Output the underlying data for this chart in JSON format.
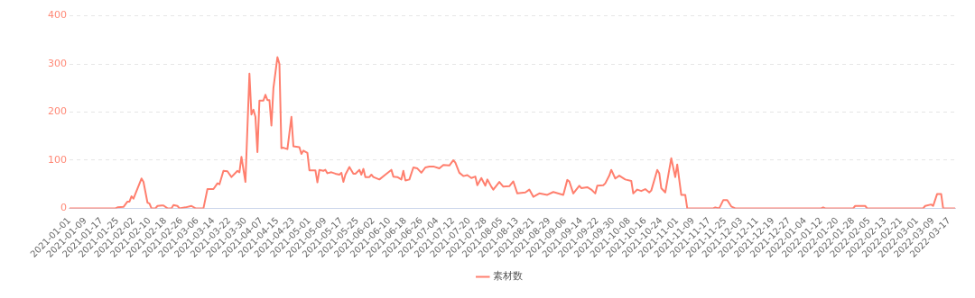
{
  "chart_data": {
    "type": "line",
    "x": [
      "2021-01-01",
      "2021-01-24",
      "2021-01-25",
      "2021-01-28",
      "2021-01-30",
      "2021-01-31",
      "2021-02-01",
      "2021-02-02",
      "2021-02-06",
      "2021-02-07",
      "2021-02-09",
      "2021-02-10",
      "2021-02-11",
      "2021-02-13",
      "2021-02-14",
      "2021-02-16",
      "2021-02-17",
      "2021-02-19",
      "2021-02-21",
      "2021-02-22",
      "2021-02-24",
      "2021-02-25",
      "2021-02-28",
      "2021-03-03",
      "2021-03-05",
      "2021-03-09",
      "2021-03-11",
      "2021-03-14",
      "2021-03-16",
      "2021-03-17",
      "2021-03-19",
      "2021-03-21",
      "2021-03-23",
      "2021-03-26",
      "2021-03-27",
      "2021-03-28",
      "2021-03-30",
      "2021-04-01",
      "2021-04-02",
      "2021-04-03",
      "2021-04-04",
      "2021-04-05",
      "2021-04-06",
      "2021-04-08",
      "2021-04-09",
      "2021-04-10",
      "2021-04-11",
      "2021-04-12",
      "2021-04-13",
      "2021-04-15",
      "2021-04-16",
      "2021-04-17",
      "2021-04-18",
      "2021-04-20",
      "2021-04-22",
      "2021-04-23",
      "2021-04-26",
      "2021-04-27",
      "2021-04-28",
      "2021-04-30",
      "2021-05-01",
      "2021-05-04",
      "2021-05-05",
      "2021-05-06",
      "2021-05-08",
      "2021-05-09",
      "2021-05-10",
      "2021-05-12",
      "2021-05-14",
      "2021-05-16",
      "2021-05-17",
      "2021-05-18",
      "2021-05-19",
      "2021-05-21",
      "2021-05-23",
      "2021-05-24",
      "2021-05-26",
      "2021-05-27",
      "2021-05-28",
      "2021-05-29",
      "2021-05-31",
      "2021-06-01",
      "2021-06-02",
      "2021-06-05",
      "2021-06-08",
      "2021-06-11",
      "2021-06-12",
      "2021-06-14",
      "2021-06-16",
      "2021-06-17",
      "2021-06-18",
      "2021-06-20",
      "2021-06-22",
      "2021-06-24",
      "2021-06-26",
      "2021-06-28",
      "2021-06-30",
      "2021-07-02",
      "2021-07-05",
      "2021-07-07",
      "2021-07-10",
      "2021-07-12",
      "2021-07-13",
      "2021-07-15",
      "2021-07-17",
      "2021-07-19",
      "2021-07-21",
      "2021-07-23",
      "2021-07-24",
      "2021-07-26",
      "2021-07-28",
      "2021-07-29",
      "2021-07-31",
      "2021-08-01",
      "2021-08-04",
      "2021-08-06",
      "2021-08-09",
      "2021-08-11",
      "2021-08-13",
      "2021-08-17",
      "2021-08-19",
      "2021-08-21",
      "2021-08-24",
      "2021-08-28",
      "2021-08-31",
      "2021-09-05",
      "2021-09-07",
      "2021-09-08",
      "2021-09-10",
      "2021-09-13",
      "2021-09-14",
      "2021-09-17",
      "2021-09-19",
      "2021-09-21",
      "2021-09-22",
      "2021-09-25",
      "2021-09-26",
      "2021-09-28",
      "2021-09-29",
      "2021-10-01",
      "2021-10-03",
      "2021-10-06",
      "2021-10-09",
      "2021-10-10",
      "2021-10-12",
      "2021-10-14",
      "2021-10-16",
      "2021-10-18",
      "2021-10-19",
      "2021-10-22",
      "2021-10-23",
      "2021-10-24",
      "2021-10-26",
      "2021-10-29",
      "2021-10-31",
      "2021-11-01",
      "2021-11-03",
      "2021-11-05",
      "2021-11-06",
      "2021-11-19",
      "2021-11-20",
      "2021-11-22",
      "2021-11-24",
      "2021-11-26",
      "2021-11-28",
      "2021-11-30",
      "2022-01-12",
      "2022-01-13",
      "2022-01-14",
      "2022-01-28",
      "2022-01-29",
      "2022-02-03",
      "2022-02-04",
      "2022-03-04",
      "2022-03-05",
      "2022-03-08",
      "2022-03-09",
      "2022-03-11",
      "2022-03-13",
      "2022-03-14",
      "2022-03-20"
    ],
    "series": [
      {
        "name": "素材数",
        "color": "#ff7f6e",
        "values": [
          0,
          0,
          2,
          3,
          14,
          14,
          25,
          20,
          62,
          55,
          12,
          10,
          0,
          0,
          5,
          6,
          6,
          0,
          0,
          7,
          5,
          0,
          2,
          5,
          0,
          0,
          40,
          40,
          52,
          50,
          78,
          77,
          65,
          78,
          75,
          107,
          55,
          280,
          195,
          205,
          190,
          117,
          224,
          224,
          236,
          225,
          225,
          172,
          250,
          314,
          300,
          125,
          126,
          123,
          190,
          129,
          127,
          113,
          120,
          115,
          79,
          79,
          54,
          80,
          78,
          80,
          73,
          75,
          72,
          70,
          74,
          55,
          70,
          86,
          72,
          72,
          80,
          70,
          82,
          65,
          65,
          70,
          65,
          60,
          70,
          80,
          66,
          65,
          60,
          78,
          58,
          60,
          85,
          83,
          74,
          85,
          87,
          87,
          83,
          90,
          89,
          100,
          95,
          74,
          67,
          69,
          63,
          66,
          48,
          63,
          47,
          60,
          45,
          39,
          55,
          45,
          46,
          56,
          31,
          33,
          39,
          24,
          31,
          28,
          34,
          28,
          59,
          56,
          31,
          47,
          42,
          44,
          39,
          31,
          47,
          48,
          52,
          68,
          80,
          62,
          68,
          60,
          57,
          31,
          39,
          36,
          40,
          33,
          37,
          80,
          73,
          42,
          33,
          104,
          65,
          91,
          28,
          28,
          0,
          0,
          2,
          0,
          17,
          17,
          4,
          0,
          0,
          2,
          0,
          0,
          5,
          5,
          0,
          0,
          5,
          8,
          5,
          30,
          30,
          0,
          0
        ]
      }
    ],
    "xlim": [
      "2021-01-01",
      "2022-03-20"
    ],
    "xticks": [
      "2021-01-01",
      "2021-01-09",
      "2021-01-17",
      "2021-01-25",
      "2021-02-02",
      "2021-02-10",
      "2021-02-18",
      "2021-02-26",
      "2021-03-06",
      "2021-03-14",
      "2021-03-22",
      "2021-03-30",
      "2021-04-07",
      "2021-04-15",
      "2021-04-23",
      "2021-05-01",
      "2021-05-09",
      "2021-05-17",
      "2021-05-25",
      "2021-06-02",
      "2021-06-10",
      "2021-06-18",
      "2021-06-26",
      "2021-07-04",
      "2021-07-12",
      "2021-07-20",
      "2021-07-28",
      "2021-08-05",
      "2021-08-13",
      "2021-08-21",
      "2021-08-29",
      "2021-09-06",
      "2021-09-14",
      "2021-09-22",
      "2021-09-30",
      "2021-10-08",
      "2021-10-16",
      "2021-10-24",
      "2021-11-01",
      "2021-11-09",
      "2021-11-17",
      "2021-11-25",
      "2021-12-03",
      "2021-12-11",
      "2021-12-19",
      "2021-12-27",
      "2022-01-04",
      "2022-01-12",
      "2022-01-20",
      "2022-01-28",
      "2022-02-05",
      "2022-02-13",
      "2022-02-21",
      "2022-03-01",
      "2022-03-09",
      "2022-03-17"
    ],
    "ylim": [
      0,
      400
    ],
    "yticks": [
      0,
      100,
      200,
      300,
      400
    ],
    "grid": "y",
    "legend": "bottom",
    "marker": "none",
    "line_style": "solid"
  }
}
